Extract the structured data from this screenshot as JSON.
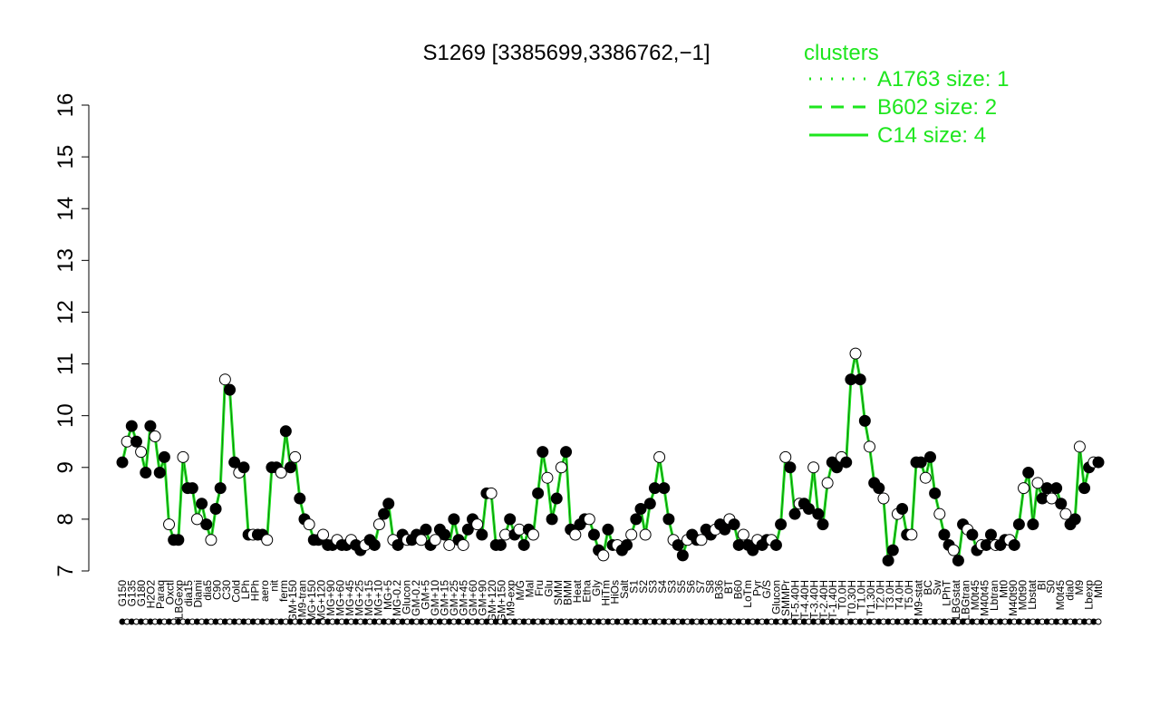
{
  "chart_data": {
    "type": "line",
    "title": "S1269 [3385699,3386762,−1]",
    "xlabel": "",
    "ylabel": "",
    "ylim": [
      7,
      16
    ],
    "yticks": [
      7,
      8,
      9,
      10,
      11,
      12,
      13,
      14,
      15,
      16
    ],
    "grid": false,
    "legend": {
      "title": "clusters",
      "placement": "top-right",
      "entries": [
        {
          "label": "A1763 size: 1",
          "style": "dotted"
        },
        {
          "label": "B602 size: 2",
          "style": "dashed"
        },
        {
          "label": "C14 size: 4",
          "style": "solid"
        }
      ]
    },
    "colors": {
      "line": "#1ee61e",
      "legend": "#1ee61e",
      "points_filled": "#000000",
      "points_open": "#ffffff"
    },
    "x_tick_labels": [
      "G150",
      "G135",
      "G180",
      "H2O2",
      "Paraq",
      "Oxctl",
      "LBGexp",
      "dia15",
      "Diami",
      "dia5",
      "C90",
      "C30",
      "Cold",
      "LPh",
      "HPh",
      "aero",
      "nit",
      "ferm",
      "GM+150",
      "M9-tran",
      "MG+150",
      "MG+120",
      "MG+90",
      "MG+60",
      "MG+45",
      "MG+25",
      "MG+15",
      "MG+10",
      "MG+5",
      "MG-0.2",
      "Glucon",
      "GM-0.2",
      "GM+5",
      "GM+10",
      "GM+15",
      "GM+25",
      "GM+45",
      "GM+60",
      "GM+90",
      "GM+120",
      "GM+150",
      "M9-exp",
      "M/G",
      "Mal",
      "Fru",
      "Glu",
      "SMM",
      "BMM",
      "Heat",
      "Etha",
      "Gly",
      "HiTm",
      "HiOs",
      "Salt",
      "S1",
      "S2",
      "S3",
      "S4",
      "S3",
      "S5",
      "S6",
      "S7",
      "S8",
      "B36",
      "BT",
      "B60",
      "LoTm",
      "Pyr",
      "G/S",
      "Glucon",
      "SMMPr",
      "T-5.40H",
      "T-4.40H",
      "T-3.40H",
      "T-2.40H",
      "T-1.40H",
      "T0.0H",
      "T0.30H",
      "T1.0H",
      "T1.30H",
      "T2.0H",
      "T3.0H",
      "T4.0H",
      "T5.0H",
      "M9-stat",
      "BC",
      "Sw",
      "LPhT",
      "LBGstat",
      "LBGtran",
      "M0t45",
      "M40t45",
      "Lbtran",
      "Mt0",
      "M40t90",
      "M0t90",
      "Lbstat",
      "BI",
      "S0",
      "M0t45",
      "dia0",
      "M9",
      "Lbexp",
      "Mt0"
    ],
    "series": [
      {
        "name": "",
        "values": [
          9.1,
          9.5,
          9.8,
          9.5,
          9.3,
          8.9,
          9.8,
          9.6,
          8.9,
          9.2,
          7.9,
          7.6,
          7.6,
          9.2,
          8.6,
          8.6,
          8.0,
          8.3,
          7.9,
          7.6,
          8.2,
          8.6,
          10.7,
          10.5,
          9.1,
          8.9,
          9.0,
          7.7,
          7.7,
          7.7,
          7.7,
          7.6,
          9.0,
          9.0,
          8.9,
          9.7,
          9.0,
          9.2,
          8.4,
          8.0,
          7.9,
          7.6,
          7.6,
          7.7,
          7.5,
          7.5,
          7.6,
          7.5,
          7.5,
          7.6,
          7.5,
          7.4,
          7.5,
          7.6,
          7.5,
          7.9,
          8.1,
          8.3,
          7.6,
          7.5,
          7.7,
          7.6,
          7.6,
          7.7,
          7.6,
          7.8,
          7.5,
          7.6,
          7.8,
          7.7,
          7.5,
          8.0,
          7.6,
          7.5,
          7.8,
          8.0,
          7.9,
          7.7,
          8.5,
          8.5,
          7.5,
          7.5,
          7.7,
          8.0,
          7.7,
          7.8,
          7.5,
          7.8,
          7.7,
          8.5,
          9.3,
          8.8,
          8.0,
          8.4,
          9.0,
          9.3,
          7.8,
          7.7,
          7.9,
          8.0,
          8.0,
          7.7,
          7.4,
          7.3,
          7.8,
          7.5,
          7.5,
          7.4,
          7.5,
          7.7,
          8.0,
          8.2,
          7.7,
          8.3,
          8.6,
          9.2,
          8.6,
          8.0,
          7.6,
          7.5,
          7.3,
          7.6,
          7.7,
          7.6,
          7.6,
          7.8,
          7.7,
          7.8,
          7.9,
          7.8,
          8.0,
          7.9,
          7.5,
          7.7,
          7.5,
          7.4,
          7.6,
          7.5,
          7.6,
          7.6,
          7.5,
          7.9,
          9.2,
          9.0,
          8.1,
          8.3,
          8.3,
          8.2,
          9.0,
          8.1,
          7.9,
          8.7,
          9.1,
          9.0,
          9.2,
          9.1,
          10.7,
          11.2,
          10.7,
          9.9,
          9.4,
          8.7,
          8.6,
          8.4,
          7.2,
          7.4,
          8.1,
          8.2,
          7.7,
          7.7,
          9.1,
          9.1,
          8.8,
          9.2,
          8.5,
          8.1,
          7.7,
          7.5,
          7.4,
          7.2,
          7.9,
          7.8,
          7.7,
          7.4,
          7.5,
          7.5,
          7.7,
          7.5,
          7.5,
          7.6,
          7.6,
          7.5,
          7.9,
          8.6,
          8.9,
          7.9,
          8.7,
          8.4,
          8.6,
          8.4,
          8.6,
          8.3,
          8.1,
          7.9,
          8.0,
          9.4,
          8.6,
          9.0,
          9.1,
          9.1
        ]
      }
    ]
  }
}
